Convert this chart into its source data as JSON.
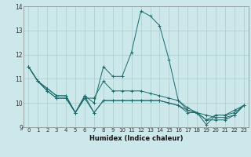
{
  "xlabel": "Humidex (Indice chaleur)",
  "bg_color": "#cce8ea",
  "line_color": "#1a6b6b",
  "grid_color": "#aacccc",
  "xlim": [
    -0.5,
    23.5
  ],
  "ylim": [
    9,
    14
  ],
  "yticks": [
    9,
    10,
    11,
    12,
    13,
    14
  ],
  "xticks": [
    0,
    1,
    2,
    3,
    4,
    5,
    6,
    7,
    8,
    9,
    10,
    11,
    12,
    13,
    14,
    15,
    16,
    17,
    18,
    19,
    20,
    21,
    22,
    23
  ],
  "series": [
    [
      11.5,
      10.9,
      10.6,
      10.3,
      10.3,
      9.6,
      10.3,
      10.0,
      11.5,
      11.1,
      11.1,
      12.1,
      13.8,
      13.6,
      13.2,
      11.8,
      10.1,
      9.7,
      9.6,
      9.1,
      9.5,
      9.5,
      9.7,
      9.9
    ],
    [
      11.5,
      10.9,
      10.6,
      10.3,
      10.3,
      9.6,
      10.3,
      9.6,
      10.1,
      10.1,
      10.1,
      10.1,
      10.1,
      10.1,
      10.1,
      10.0,
      9.9,
      9.7,
      9.6,
      9.5,
      9.4,
      9.4,
      9.5,
      9.9
    ],
    [
      11.5,
      10.9,
      10.5,
      10.2,
      10.2,
      9.6,
      10.2,
      10.2,
      10.9,
      10.5,
      10.5,
      10.5,
      10.5,
      10.4,
      10.3,
      10.2,
      10.1,
      9.8,
      9.6,
      9.3,
      9.5,
      9.5,
      9.6,
      9.9
    ],
    [
      11.5,
      10.9,
      10.5,
      10.2,
      10.2,
      9.6,
      10.2,
      9.6,
      10.1,
      10.1,
      10.1,
      10.1,
      10.1,
      10.1,
      10.1,
      10.0,
      9.9,
      9.6,
      9.6,
      9.3,
      9.3,
      9.3,
      9.5,
      9.9
    ]
  ]
}
